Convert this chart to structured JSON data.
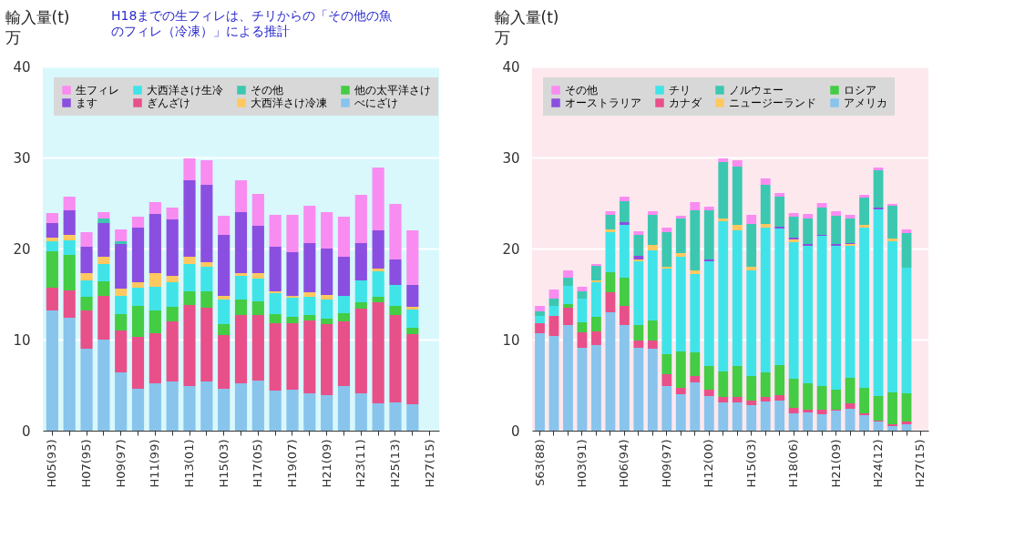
{
  "chart_data": [
    {
      "type": "bar",
      "stacked": true,
      "ylabel": "輸入量(t)\n万",
      "annotations": [
        "H18までの生フィレは、チリからの「その他の魚のフィレ（冷凍）」による推計"
      ],
      "categories": [
        "H05(93)",
        null,
        "H07(95)",
        null,
        "H09(97)",
        null,
        "H11(99)",
        null,
        "H13(01)",
        null,
        "H15(03)",
        null,
        "H17(05)",
        null,
        "H19(07)",
        null,
        "H21(09)",
        null,
        "H23(11)",
        null,
        "H25(13)",
        null,
        "H27(15)"
      ],
      "series": [
        {
          "name": "べにざけ",
          "color": "#88c4ec",
          "values": [
            13.2,
            12.4,
            9.0,
            10.0,
            6.4,
            4.6,
            5.2,
            5.4,
            4.9,
            5.4,
            4.6,
            5.2,
            5.5,
            4.4,
            4.5,
            4.1,
            3.9,
            4.9,
            4.1,
            3.0,
            3.1,
            2.9,
            null
          ]
        },
        {
          "name": "ぎんざけ",
          "color": "#e8508a",
          "values": [
            2.5,
            3.0,
            4.2,
            4.8,
            4.6,
            5.7,
            5.5,
            6.6,
            8.9,
            8.1,
            5.9,
            7.5,
            7.2,
            7.4,
            7.3,
            8.0,
            7.8,
            7.1,
            9.3,
            11.1,
            9.6,
            7.7,
            null
          ]
        },
        {
          "name": "他の太平洋さけ",
          "color": "#44cc44",
          "values": [
            4.0,
            3.9,
            1.5,
            1.6,
            1.8,
            3.4,
            2.5,
            1.6,
            1.5,
            1.8,
            1.2,
            1.7,
            1.5,
            1.0,
            0.7,
            0.6,
            0.6,
            0.9,
            0.7,
            0.6,
            1.0,
            0.7,
            null
          ]
        },
        {
          "name": "大西洋さけ生冷",
          "color": "#40e4e8",
          "values": [
            1.1,
            1.6,
            1.8,
            1.9,
            2.0,
            2.0,
            2.6,
            2.7,
            3.0,
            2.7,
            2.7,
            2.6,
            2.5,
            2.3,
            2.1,
            2.0,
            2.1,
            1.9,
            2.4,
            2.8,
            2.3,
            2.0,
            null
          ]
        },
        {
          "name": "大西洋さけ冷凍",
          "color": "#ffc860",
          "values": [
            0.4,
            0.6,
            0.8,
            0.8,
            0.8,
            0.6,
            1.5,
            0.7,
            0.8,
            0.5,
            0.4,
            0.3,
            0.6,
            0.2,
            0.2,
            0.5,
            0.5,
            0,
            0,
            0.3,
            0,
            0.3,
            null
          ]
        },
        {
          "name": "ます",
          "color": "#8a4fe0",
          "values": [
            1.6,
            2.7,
            2.9,
            3.7,
            4.9,
            6.0,
            6.5,
            6.2,
            8.4,
            8.5,
            6.7,
            6.7,
            5.2,
            4.9,
            4.8,
            5.4,
            5.1,
            4.3,
            4.1,
            4.2,
            2.8,
            2.4,
            null
          ]
        },
        {
          "name": "その他",
          "color": "#3cc8b0",
          "values": [
            0,
            0,
            0,
            0.5,
            0.3,
            0,
            0,
            0,
            0,
            0,
            0,
            0,
            0,
            0,
            0,
            0,
            0,
            0,
            0,
            0,
            0,
            0,
            null
          ]
        },
        {
          "name": "生フィレ",
          "color": "#f98cf0",
          "values": [
            1.1,
            1.5,
            1.6,
            0.7,
            1.3,
            1.2,
            1.3,
            1.3,
            2.4,
            2.7,
            2.1,
            3.5,
            3.5,
            3.5,
            4.1,
            4.1,
            4.0,
            4.4,
            5.3,
            6.9,
            6.1,
            6.0,
            null
          ]
        }
      ],
      "ylim": [
        0,
        40
      ],
      "yticks": [
        0,
        10,
        20,
        30,
        40
      ],
      "grid": "y",
      "legend": "top left"
    },
    {
      "type": "bar",
      "stacked": true,
      "ylabel": "輸入量(t)\n万",
      "categories": [
        "S63(88)",
        null,
        null,
        "H03(91)",
        null,
        null,
        "H06(94)",
        null,
        null,
        "H09(97)",
        null,
        null,
        "H12(00)",
        null,
        null,
        "H15(03)",
        null,
        null,
        "H18(06)",
        null,
        null,
        "H21(09)",
        null,
        null,
        "H24(12)",
        null,
        null,
        "H27(15)"
      ],
      "series": [
        {
          "name": "アメリカ",
          "color": "#88c4ec",
          "values": [
            10.7,
            10.4,
            11.6,
            9.1,
            9.4,
            13.0,
            11.6,
            9.1,
            9.0,
            4.9,
            4.0,
            5.3,
            3.8,
            3.1,
            3.1,
            2.8,
            3.2,
            3.3,
            1.9,
            2.0,
            1.8,
            2.2,
            2.4,
            1.7,
            1.0,
            0.5,
            0.7,
            null
          ]
        },
        {
          "name": "カナダ",
          "color": "#e8508a",
          "values": [
            1.1,
            2.2,
            1.9,
            1.7,
            1.5,
            2.2,
            2.1,
            0.8,
            0.9,
            1.3,
            0.7,
            0.7,
            0.7,
            0.6,
            0.6,
            0.5,
            0.5,
            0.6,
            0.6,
            0.3,
            0.5,
            0.1,
            0.6,
            0.2,
            0.1,
            0.2,
            0.3,
            null
          ]
        },
        {
          "name": "ロシア",
          "color": "#44cc44",
          "values": [
            0,
            0,
            0.4,
            1.1,
            1.6,
            2.2,
            3.1,
            1.7,
            2.2,
            2.2,
            4.0,
            2.6,
            2.6,
            2.8,
            3.4,
            2.7,
            2.7,
            3.3,
            3.2,
            2.9,
            2.6,
            2.2,
            2.8,
            2.8,
            2.7,
            3.5,
            3.1,
            null
          ]
        },
        {
          "name": "チリ",
          "color": "#40e4e8",
          "values": [
            0.8,
            1.1,
            2.0,
            2.6,
            3.8,
            4.4,
            5.8,
            7.0,
            7.7,
            9.4,
            10.4,
            8.6,
            11.5,
            16.5,
            14.9,
            11.6,
            15.9,
            15.0,
            15.0,
            15.1,
            16.5,
            15.8,
            14.5,
            17.6,
            20.5,
            16.6,
            13.8,
            null
          ]
        },
        {
          "name": "ニュージーランド",
          "color": "#ffc860",
          "values": [
            0,
            0,
            0,
            0,
            0.2,
            0.3,
            0,
            0.2,
            0.6,
            0.2,
            0.4,
            0.4,
            0,
            0.3,
            0.6,
            0.4,
            0.4,
            0,
            0.3,
            0,
            0,
            0,
            0.2,
            0.3,
            0,
            0.3,
            0,
            null
          ]
        },
        {
          "name": "オーストラリア",
          "color": "#8a4fe0",
          "values": [
            0,
            0,
            0,
            0,
            0,
            0,
            0.3,
            0.4,
            0,
            0,
            0,
            0,
            0.2,
            0,
            0,
            0,
            0,
            0.2,
            0.2,
            0.2,
            0.1,
            0.2,
            0.1,
            0,
            0.2,
            0,
            0,
            null
          ]
        },
        {
          "name": "ノルウェー",
          "color": "#3cc8b0",
          "values": [
            0.5,
            0.8,
            0.9,
            0.8,
            1.6,
            1.6,
            2.3,
            2.3,
            3.3,
            3.8,
            3.8,
            6.6,
            5.4,
            6.2,
            6.4,
            4.7,
            4.3,
            3.3,
            2.3,
            2.8,
            3.0,
            3.1,
            2.7,
            3.0,
            4.1,
            3.6,
            3.8,
            null
          ]
        },
        {
          "name": "その他",
          "color": "#f98cf0",
          "values": [
            0.6,
            1.0,
            0.8,
            0.5,
            0.2,
            0.4,
            0.5,
            0.4,
            0.4,
            0.5,
            0.3,
            0.9,
            0.4,
            0.4,
            0.7,
            1.0,
            0.7,
            0.4,
            0.4,
            0.5,
            0.5,
            0.5,
            0.4,
            0.3,
            0.3,
            0.2,
            0.4,
            null
          ]
        }
      ],
      "ylim": [
        0,
        40
      ],
      "yticks": [
        0,
        10,
        20,
        30,
        40
      ],
      "grid": "y",
      "legend": "top left"
    }
  ]
}
